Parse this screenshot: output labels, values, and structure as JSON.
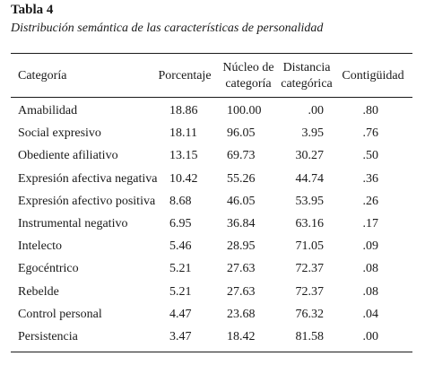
{
  "table": {
    "title": "Tabla 4",
    "subtitle": "Distribución semántica de las características de personalidad",
    "headers": {
      "categoria": "Categoría",
      "porcentaje": "Porcentaje",
      "nucleo_line1": "Núcleo de",
      "nucleo_line2": "categoría",
      "distancia_line1": "Distancia",
      "distancia_line2": "categórica",
      "contiguidad": "Contigüidad"
    },
    "rows": [
      {
        "categoria": "Amabilidad",
        "porcentaje": "18.86",
        "nucleo": "100.00",
        "distancia": ".00",
        "contiguidad": ".80"
      },
      {
        "categoria": "Social expresivo",
        "porcentaje": "18.11",
        "nucleo": "96.05",
        "distancia": "3.95",
        "contiguidad": ".76"
      },
      {
        "categoria": "Obediente afiliativo",
        "porcentaje": "13.15",
        "nucleo": "69.73",
        "distancia": "30.27",
        "contiguidad": ".50"
      },
      {
        "categoria": "Expresión afectiva negativa",
        "porcentaje": "10.42",
        "nucleo": "55.26",
        "distancia": "44.74",
        "contiguidad": ".36"
      },
      {
        "categoria": "Expresión afectivo positiva",
        "porcentaje": "8.68",
        "nucleo": "46.05",
        "distancia": "53.95",
        "contiguidad": ".26"
      },
      {
        "categoria": "Instrumental negativo",
        "porcentaje": "6.95",
        "nucleo": "36.84",
        "distancia": "63.16",
        "contiguidad": ".17"
      },
      {
        "categoria": "Intelecto",
        "porcentaje": "5.46",
        "nucleo": "28.95",
        "distancia": "71.05",
        "contiguidad": ".09"
      },
      {
        "categoria": "Egocéntrico",
        "porcentaje": "5.21",
        "nucleo": "27.63",
        "distancia": "72.37",
        "contiguidad": ".08"
      },
      {
        "categoria": "Rebelde",
        "porcentaje": "5.21",
        "nucleo": "27.63",
        "distancia": "72.37",
        "contiguidad": ".08"
      },
      {
        "categoria": "Control personal",
        "porcentaje": "4.47",
        "nucleo": "23.68",
        "distancia": "76.32",
        "contiguidad": ".04"
      },
      {
        "categoria": "Persistencia",
        "porcentaje": "3.47",
        "nucleo": "18.42",
        "distancia": "81.58",
        "contiguidad": ".00"
      }
    ]
  },
  "chart_data": {
    "type": "table",
    "title": "Tabla 4",
    "subtitle": "Distribución semántica de las características de personalidad",
    "columns": [
      "Categoría",
      "Porcentaje",
      "Núcleo de categoría",
      "Distancia categórica",
      "Contigüidad"
    ],
    "rows": [
      [
        "Amabilidad",
        18.86,
        100.0,
        0.0,
        0.8
      ],
      [
        "Social expresivo",
        18.11,
        96.05,
        3.95,
        0.76
      ],
      [
        "Obediente afiliativo",
        13.15,
        69.73,
        30.27,
        0.5
      ],
      [
        "Expresión afectiva negativa",
        10.42,
        55.26,
        44.74,
        0.36
      ],
      [
        "Expresión afectivo positiva",
        8.68,
        46.05,
        53.95,
        0.26
      ],
      [
        "Instrumental negativo",
        6.95,
        36.84,
        63.16,
        0.17
      ],
      [
        "Intelecto",
        5.46,
        28.95,
        71.05,
        0.09
      ],
      [
        "Egocéntrico",
        5.21,
        27.63,
        72.37,
        0.08
      ],
      [
        "Rebelde",
        5.21,
        27.63,
        72.37,
        0.08
      ],
      [
        "Control personal",
        4.47,
        23.68,
        76.32,
        0.04
      ],
      [
        "Persistencia",
        3.47,
        18.42,
        81.58,
        0.0
      ]
    ]
  }
}
